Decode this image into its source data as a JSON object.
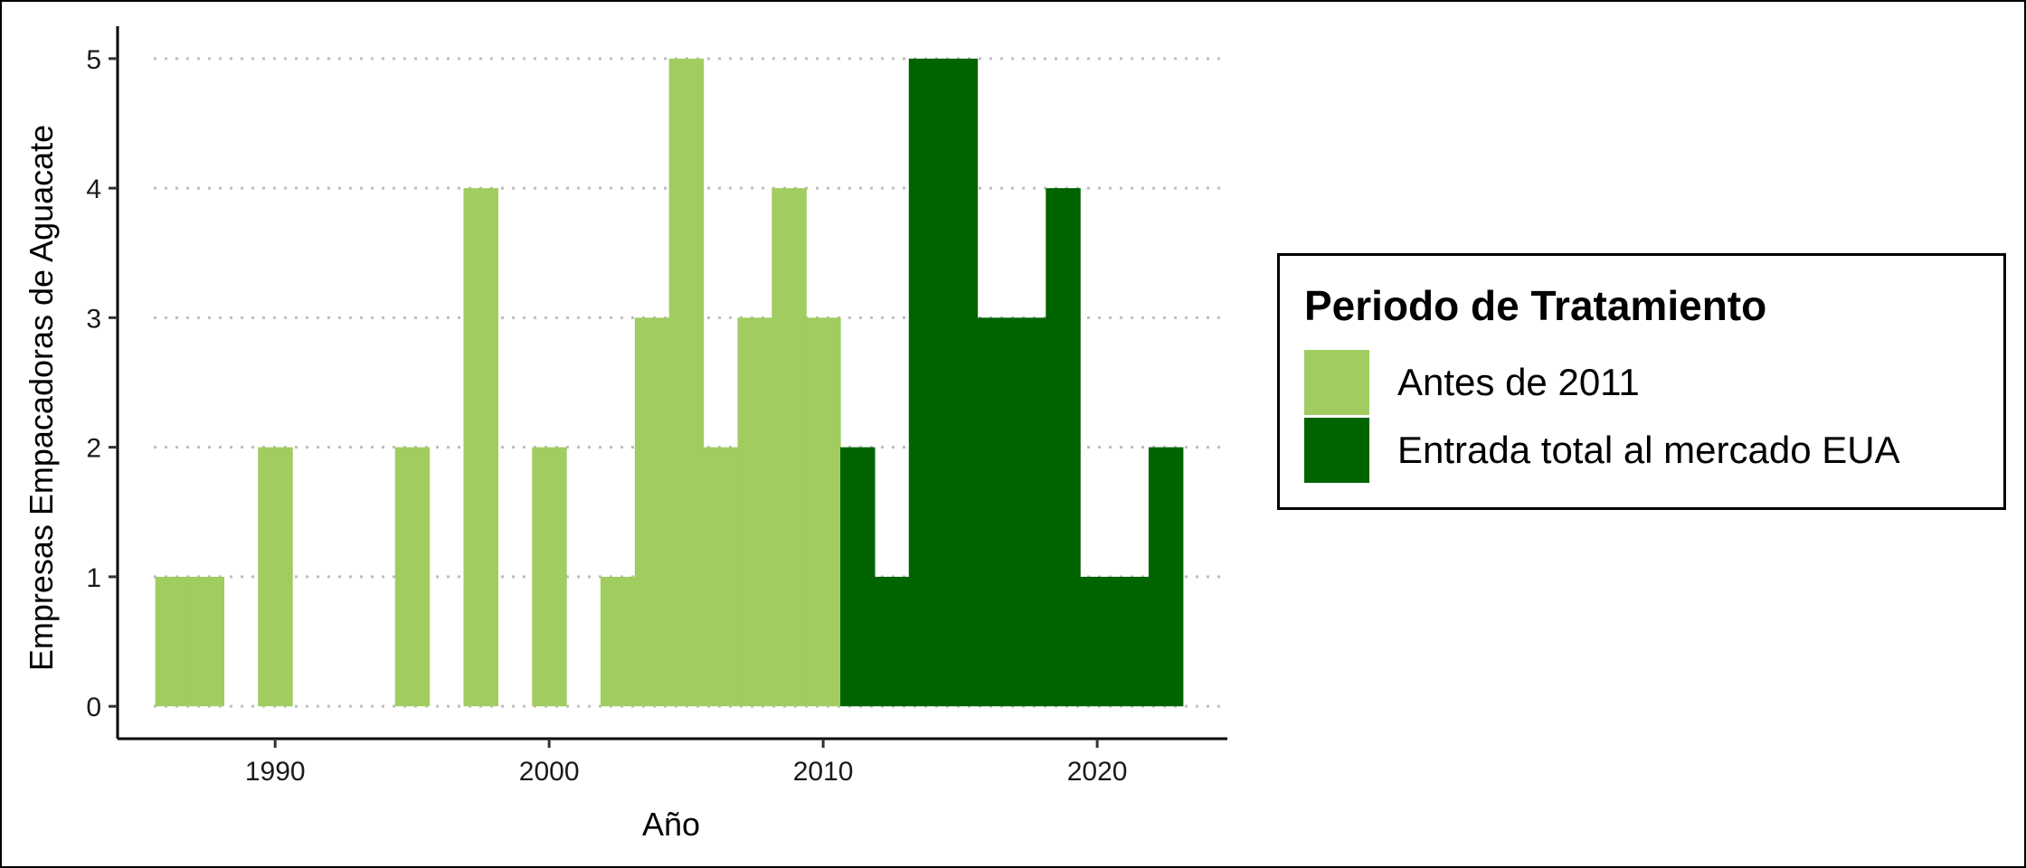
{
  "chart_data": {
    "type": "bar",
    "title": "",
    "xlabel": "Año",
    "ylabel": "Empresas Empacadoras de Aguacate",
    "xlim": [
      1984.25,
      2024.75
    ],
    "ylim": [
      -0.25,
      5.25
    ],
    "x_ticks": [
      1990,
      2000,
      2010,
      2020
    ],
    "y_ticks": [
      0,
      1,
      2,
      3,
      4,
      5
    ],
    "grid": {
      "horizontal": true,
      "vertical": false,
      "style": "dotted"
    },
    "bin_width": 1.25,
    "legend": {
      "title": "Periodo de Tratamiento",
      "position": "right"
    },
    "series": [
      {
        "name": "Antes de 2011",
        "color": "#a1cc5f",
        "bins": [
          {
            "x": 1986.25,
            "value": 1
          },
          {
            "x": 1987.5,
            "value": 1
          },
          {
            "x": 1990.0,
            "value": 2
          },
          {
            "x": 1995.0,
            "value": 2
          },
          {
            "x": 1997.5,
            "value": 4
          },
          {
            "x": 2000.0,
            "value": 2
          },
          {
            "x": 2002.5,
            "value": 1
          },
          {
            "x": 2003.75,
            "value": 3
          },
          {
            "x": 2005.0,
            "value": 5
          },
          {
            "x": 2006.25,
            "value": 2
          },
          {
            "x": 2007.5,
            "value": 3
          },
          {
            "x": 2008.75,
            "value": 4
          },
          {
            "x": 2010.0,
            "value": 3
          }
        ]
      },
      {
        "name": "Entrada total al mercado EUA",
        "color": "#006400",
        "bins": [
          {
            "x": 2011.25,
            "value": 2
          },
          {
            "x": 2012.5,
            "value": 1
          },
          {
            "x": 2013.75,
            "value": 5
          },
          {
            "x": 2015.0,
            "value": 5
          },
          {
            "x": 2016.25,
            "value": 3
          },
          {
            "x": 2017.5,
            "value": 3
          },
          {
            "x": 2018.75,
            "value": 4
          },
          {
            "x": 2020.0,
            "value": 1
          },
          {
            "x": 2021.25,
            "value": 1
          },
          {
            "x": 2022.5,
            "value": 2
          }
        ]
      }
    ]
  }
}
